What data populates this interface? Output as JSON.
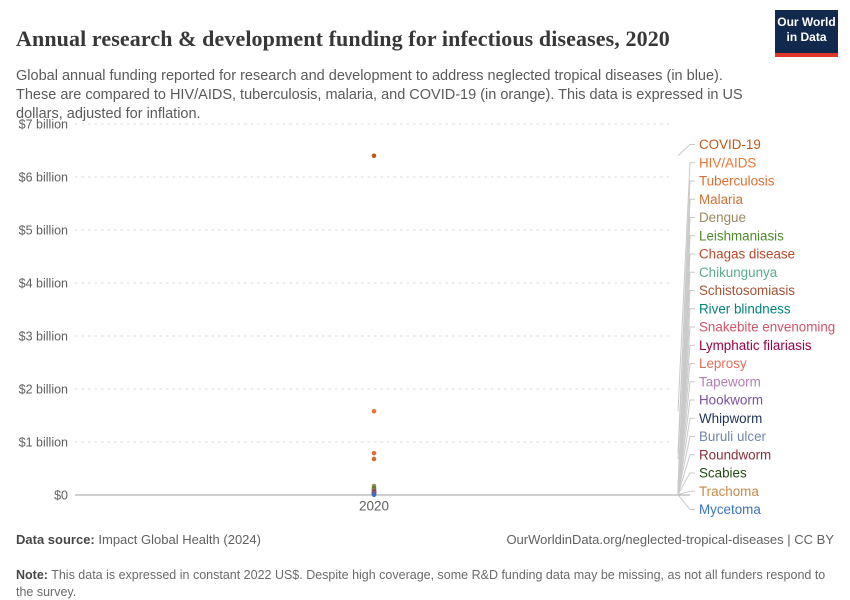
{
  "header": {
    "title": "Annual research & development funding for infectious diseases, 2020",
    "subtitle": "Global annual funding reported for research and development to address neglected tropical diseases (in blue). These are compared to HIV/AIDS, tuberculosis, malaria, and COVID-19 (in orange). This data is expressed in US dollars, adjusted for inflation.",
    "logo": {
      "line1": "Our World",
      "line2": "in Data",
      "bg_color": "#12294E",
      "accent_color": "#E0372B"
    }
  },
  "chart_data": {
    "type": "scatter",
    "title": "Annual research & development funding for infectious diseases, 2020",
    "unit": "US$, constant 2022, adjusted for inflation",
    "x": [
      2020
    ],
    "x_tick_labels": [
      "2020"
    ],
    "ylim_billions": [
      0,
      7
    ],
    "grid": "dashed-horizontal",
    "legend_position": "right-connected-labels",
    "values_note": "Per-series values estimated from point positions; all neglected tropical disease series cluster near $0.",
    "y_ticks": [
      {
        "label": "$0",
        "billions": 0
      },
      {
        "label": "$1 billion",
        "billions": 1
      },
      {
        "label": "$2 billion",
        "billions": 2
      },
      {
        "label": "$3 billion",
        "billions": 3
      },
      {
        "label": "$4 billion",
        "billions": 4
      },
      {
        "label": "$5 billion",
        "billions": 5
      },
      {
        "label": "$6 billion",
        "billions": 6
      },
      {
        "label": "$7 billion",
        "billions": 7
      }
    ],
    "series": [
      {
        "name": "COVID-19",
        "color": "#C05917",
        "x": 2020,
        "value_billion_usd": 6.4
      },
      {
        "name": "HIV/AIDS",
        "color": "#ED7432",
        "x": 2020,
        "value_billion_usd": 1.58
      },
      {
        "name": "Tuberculosis",
        "color": "#DE6E32",
        "x": 2020,
        "value_billion_usd": 0.79
      },
      {
        "name": "Malaria",
        "color": "#CD7033",
        "x": 2020,
        "value_billion_usd": 0.68
      },
      {
        "name": "Dengue",
        "color": "#9A8A62",
        "x": 2020,
        "value_billion_usd": 0.17
      },
      {
        "name": "Leishmaniasis",
        "color": "#4C8A2C",
        "x": 2020,
        "value_billion_usd": 0.13
      },
      {
        "name": "Chagas disease",
        "color": "#B5492B",
        "x": 2020,
        "value_billion_usd": 0.1
      },
      {
        "name": "Chikungunya",
        "color": "#58AC8C",
        "x": 2020,
        "value_billion_usd": 0.085
      },
      {
        "name": "Schistosomiasis",
        "color": "#A35236",
        "x": 2020,
        "value_billion_usd": 0.075
      },
      {
        "name": "River blindness",
        "color": "#00847E",
        "x": 2020,
        "value_billion_usd": 0.06
      },
      {
        "name": "Snakebite envenoming",
        "color": "#D05468",
        "x": 2020,
        "value_billion_usd": 0.05
      },
      {
        "name": "Lymphatic filariasis",
        "color": "#970046",
        "x": 2020,
        "value_billion_usd": 0.045
      },
      {
        "name": "Leprosy",
        "color": "#E56E5A",
        "x": 2020,
        "value_billion_usd": 0.035
      },
      {
        "name": "Tapeworm",
        "color": "#B47EB8",
        "x": 2020,
        "value_billion_usd": 0.03
      },
      {
        "name": "Hookworm",
        "color": "#7C4FA0",
        "x": 2020,
        "value_billion_usd": 0.025
      },
      {
        "name": "Whipworm",
        "color": "#1F3355",
        "x": 2020,
        "value_billion_usd": 0.02
      },
      {
        "name": "Buruli ulcer",
        "color": "#6F87A8",
        "x": 2020,
        "value_billion_usd": 0.015
      },
      {
        "name": "Roundworm",
        "color": "#883039",
        "x": 2020,
        "value_billion_usd": 0.012
      },
      {
        "name": "Scabies",
        "color": "#224A12",
        "x": 2020,
        "value_billion_usd": 0.01
      },
      {
        "name": "Trachoma",
        "color": "#C68A47",
        "x": 2020,
        "value_billion_usd": 0.008
      },
      {
        "name": "Mycetoma",
        "color": "#3873C0",
        "x": 2020,
        "value_billion_usd": 0.005
      }
    ]
  },
  "footer": {
    "source_label": "Data source:",
    "source_value": "Impact Global Health (2024)",
    "rights": "OurWorldinData.org/neglected-tropical-diseases | CC BY",
    "note_label": "Note:",
    "note_value": "This data is expressed in constant 2022 US$. Despite high coverage, some R&D funding data may be missing, as not all funders respond to the survey."
  }
}
